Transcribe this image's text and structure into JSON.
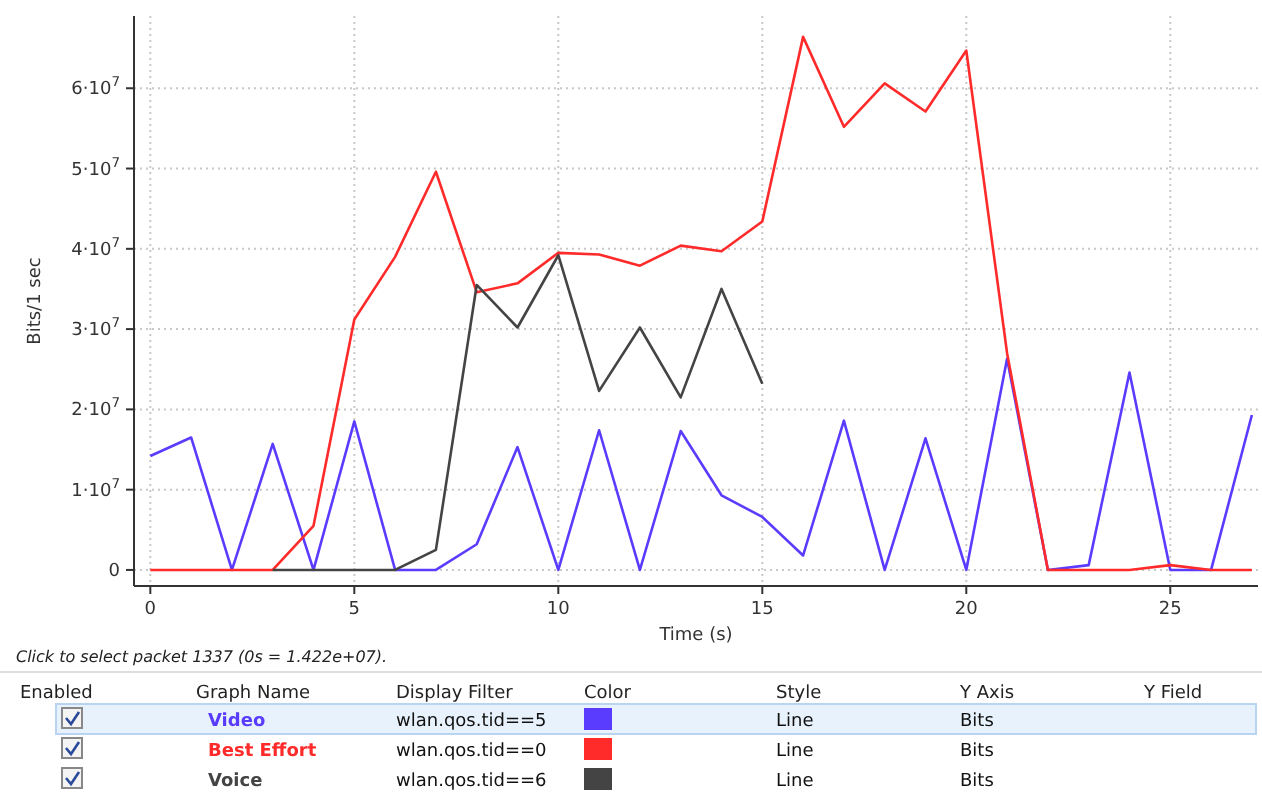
{
  "chart_data": {
    "type": "line",
    "xlabel": "Time (s)",
    "ylabel": "Bits/1 sec",
    "x": [
      0,
      1,
      2,
      3,
      4,
      5,
      6,
      7,
      8,
      9,
      10,
      11,
      12,
      13,
      14,
      15,
      16,
      17,
      18,
      19,
      20,
      21,
      22,
      23,
      24,
      25,
      26,
      27
    ],
    "series": [
      {
        "name": "Video",
        "color": "#5a3cff",
        "values": [
          14200000,
          16500000,
          0,
          15700000,
          0,
          18500000,
          0,
          0,
          3200000,
          15300000,
          0,
          17400000,
          0,
          17300000,
          9300000,
          6600000,
          1800000,
          18600000,
          0,
          16400000,
          0,
          26300000,
          0,
          600000,
          24600000,
          0,
          0,
          19300000
        ]
      },
      {
        "name": "Best Effort",
        "color": "#ff2a2a",
        "values": [
          0,
          0,
          0,
          0,
          5500000,
          31200000,
          39000000,
          49600000,
          34600000,
          35700000,
          39500000,
          39300000,
          37900000,
          40400000,
          39700000,
          43400000,
          66400000,
          55200000,
          60600000,
          57100000,
          64700000,
          27000000,
          0,
          0,
          0,
          600000,
          0,
          0
        ]
      },
      {
        "name": "Voice",
        "color": "#444444",
        "values": [
          null,
          null,
          null,
          0,
          0,
          0,
          0,
          2500000,
          35500000,
          30200000,
          39200000,
          22300000,
          30200000,
          21500000,
          35000000,
          23200000,
          null,
          null,
          null,
          null,
          null,
          null,
          null,
          null,
          null,
          null,
          null,
          null
        ]
      }
    ],
    "xlim": [
      -0.4,
      27.15
    ],
    "xticks": [
      0,
      5,
      10,
      15,
      20,
      25
    ],
    "ylim": [
      -2000000,
      69000000
    ],
    "yticks": [
      {
        "value": 0,
        "label": "0"
      },
      {
        "value": 10000000,
        "label": "1·10$^{7}$"
      },
      {
        "value": 20000000,
        "label": "2·10$^{7}$"
      },
      {
        "value": 30000000,
        "label": "3·10$^{7}$"
      },
      {
        "value": 40000000,
        "label": "4·10$^{7}$"
      },
      {
        "value": 50000000,
        "label": "5·10$^{7}$"
      },
      {
        "value": 60000000,
        "label": "6·10$^{7}$"
      }
    ],
    "grid": true,
    "legend": "bottom",
    "marker": "none",
    "line_style": "solid",
    "annotations": [
      "Click to select packet 1337 (0s = 1.422e+07).",
      "Enabled",
      "Graph Name",
      "Display Filter",
      "Color",
      "Style",
      "Y Axis",
      "Y Field",
      "wlan.qos.tid==5",
      "Line",
      "Bits",
      "wlan.qos.tid==0",
      "Line",
      "Bits",
      "wlan.qos.tid==6",
      "Line",
      "Bits"
    ]
  }
}
